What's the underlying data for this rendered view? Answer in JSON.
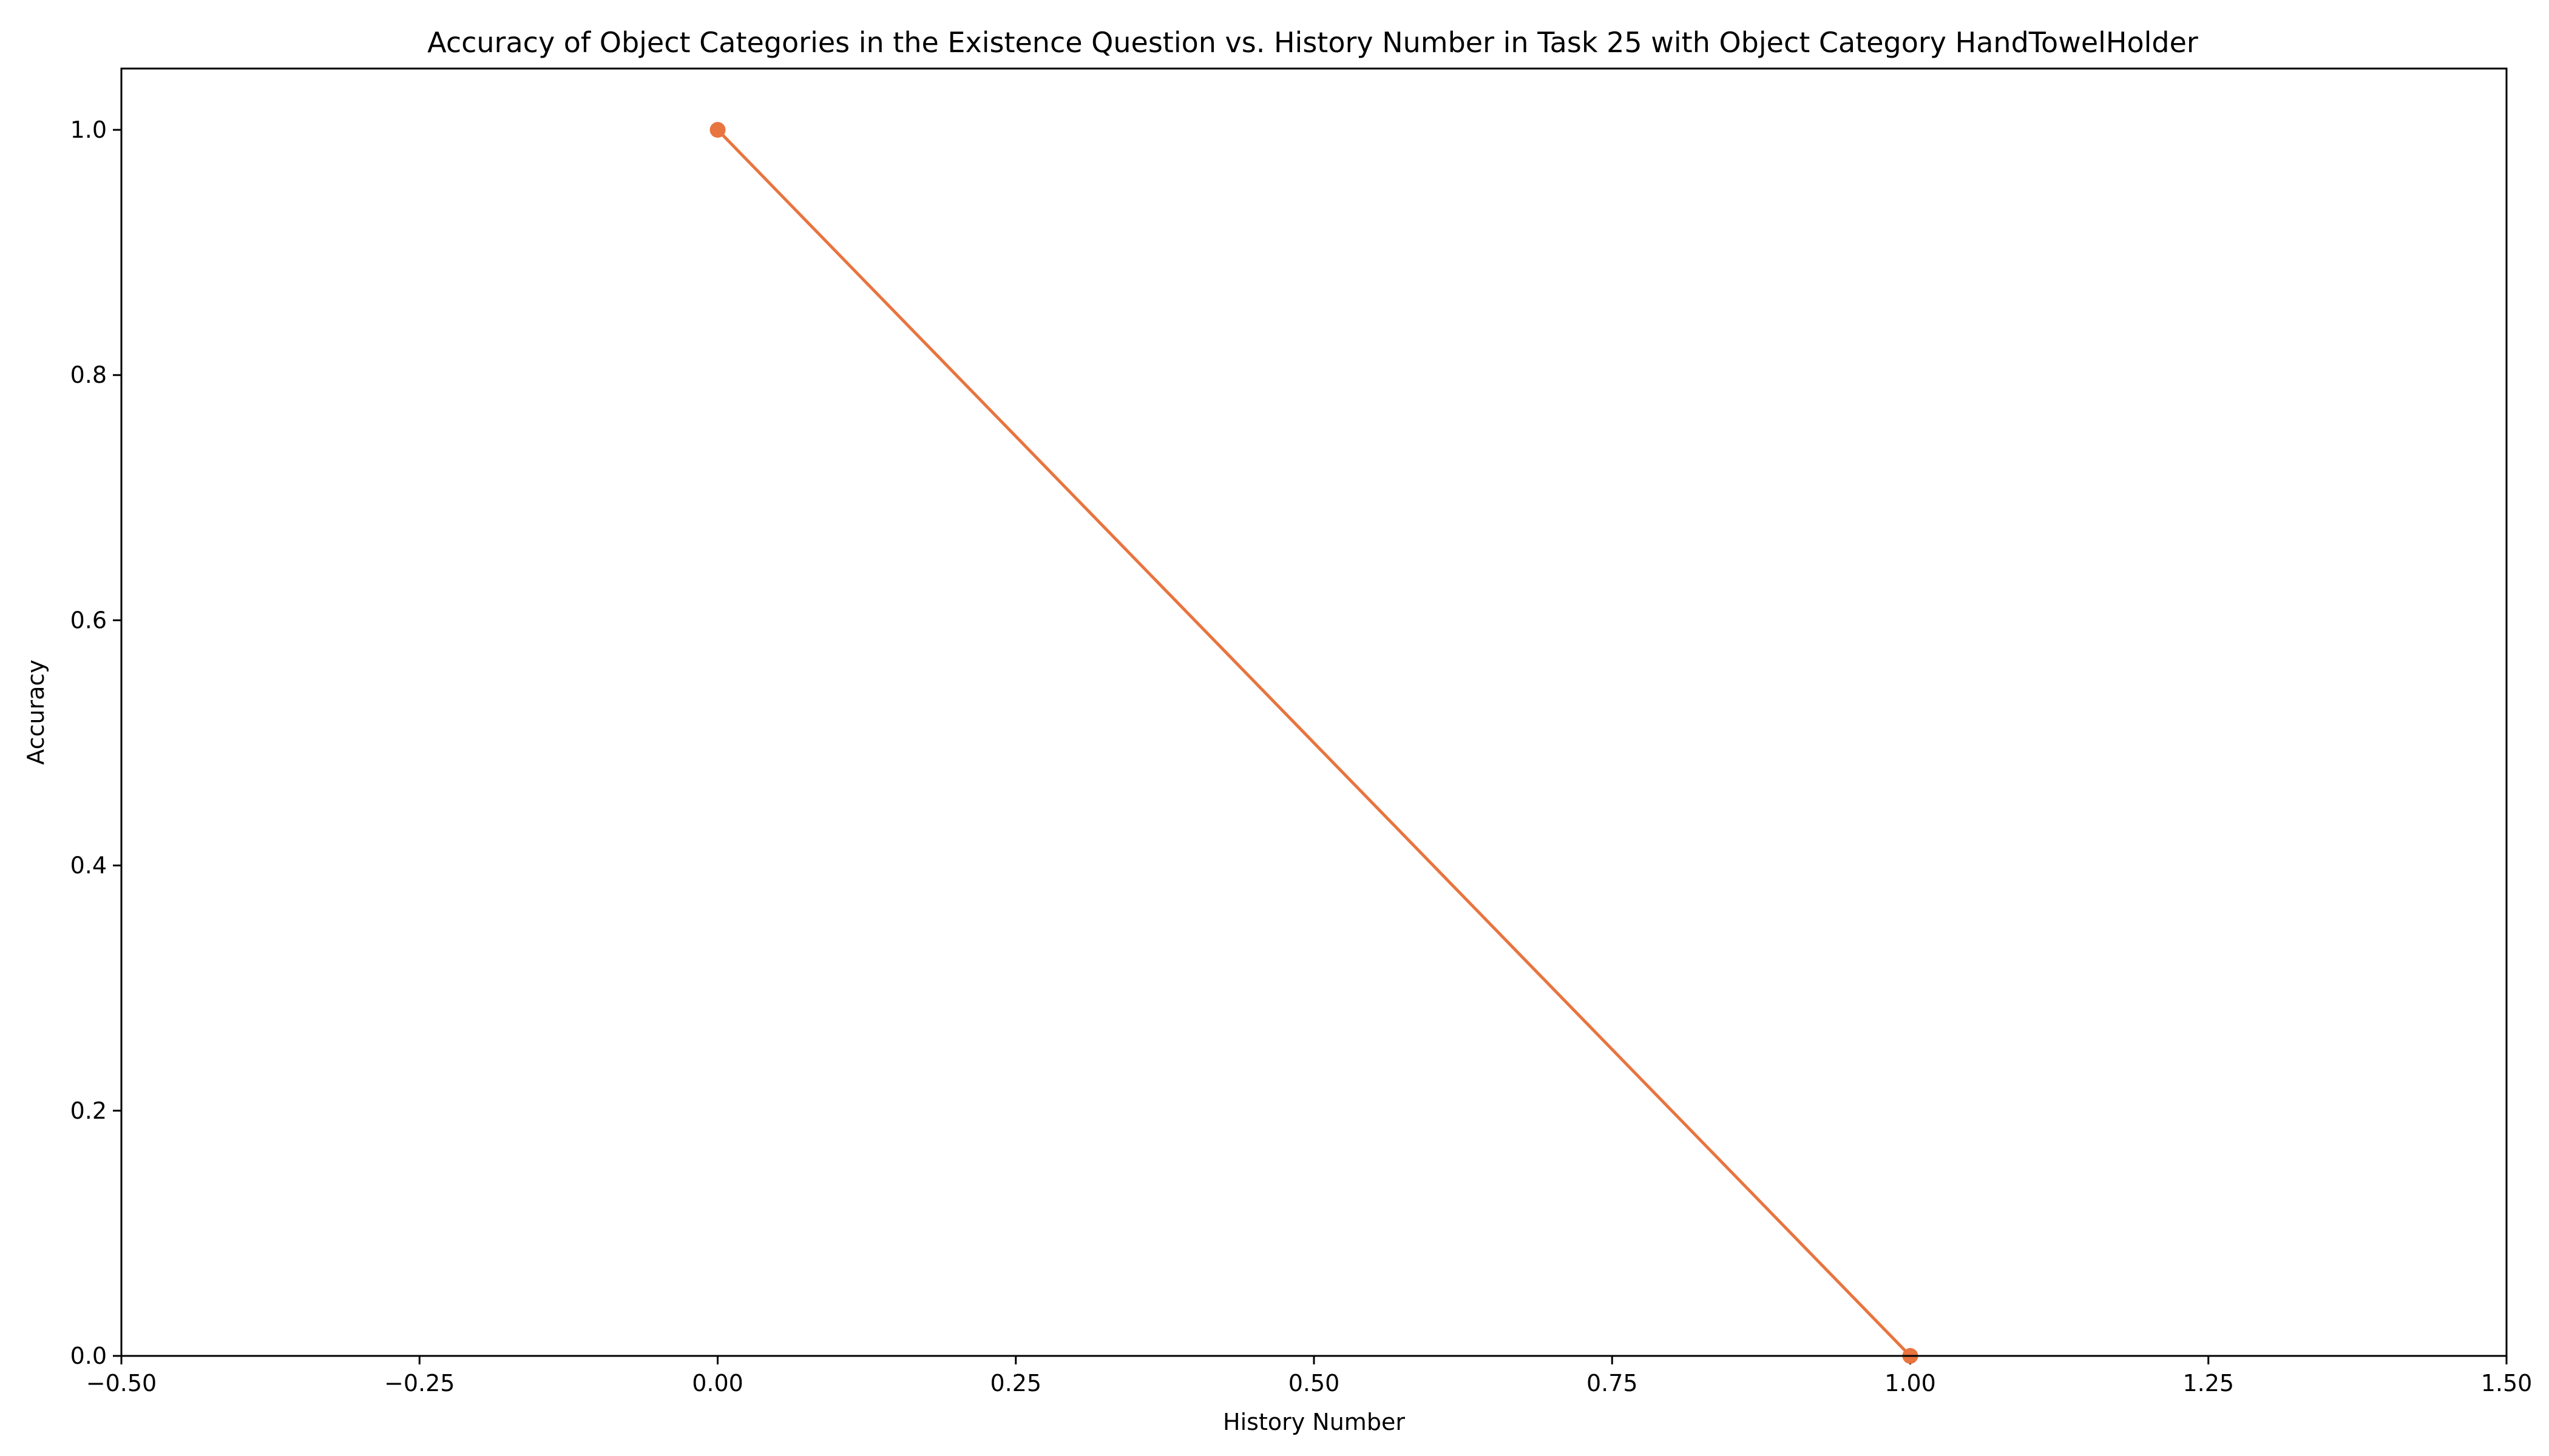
{
  "chart_data": {
    "type": "line",
    "title": "Accuracy of Object Categories in the Existence Question vs. History Number in Task 25 with Object Category HandTowelHolder",
    "xlabel": "History Number",
    "ylabel": "Accuracy",
    "xlim": [
      -0.5,
      1.5
    ],
    "ylim": [
      0.0,
      1.05
    ],
    "xticks": [
      -0.5,
      -0.25,
      0.0,
      0.25,
      0.5,
      0.75,
      1.0,
      1.25,
      1.5
    ],
    "xtick_labels": [
      "−0.50",
      "−0.25",
      "0.00",
      "0.25",
      "0.50",
      "0.75",
      "1.00",
      "1.25",
      "1.50"
    ],
    "yticks": [
      0.0,
      0.2,
      0.4,
      0.6,
      0.8,
      1.0
    ],
    "ytick_labels": [
      "0.0",
      "0.2",
      "0.4",
      "0.6",
      "0.8",
      "1.0"
    ],
    "grid": false,
    "legend": false,
    "series": [
      {
        "color": "#e8743f",
        "x": [
          0,
          1
        ],
        "y": [
          1.0,
          0.0
        ],
        "marker": "circle"
      }
    ]
  }
}
